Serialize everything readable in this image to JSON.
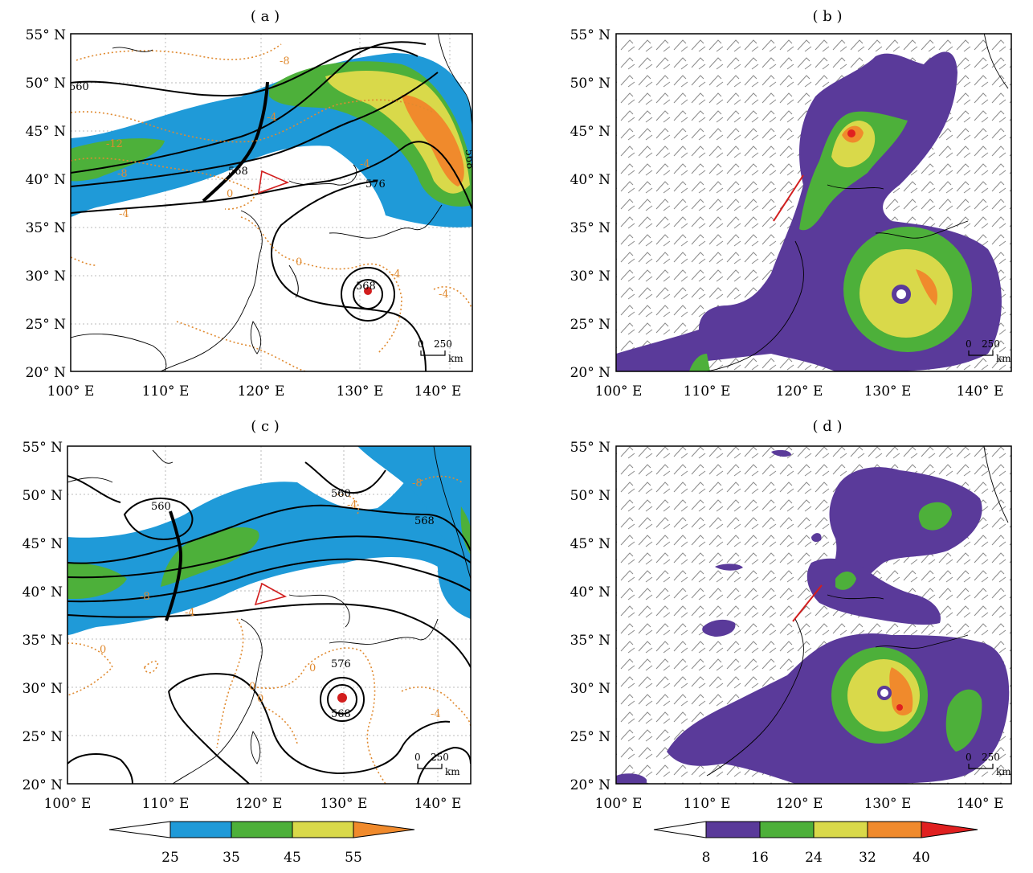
{
  "panels": [
    {
      "id": "a",
      "title": "( a )",
      "contours": [
        "560",
        "568",
        "576",
        "568",
        "568"
      ],
      "temps": [
        "-8",
        "-4",
        "-12",
        "-8",
        "0",
        "-4",
        "-4",
        "0",
        "-4",
        "-4"
      ],
      "scale": {
        "zero": "0",
        "length": "250",
        "unit": "km"
      }
    },
    {
      "id": "b",
      "title": "( b )",
      "scale": {
        "zero": "0",
        "length": "250",
        "unit": "km"
      }
    },
    {
      "id": "c",
      "title": "( c )",
      "contours": [
        "560",
        "560",
        "568",
        "576",
        "568"
      ],
      "temps": [
        "-8",
        "-4",
        "-8",
        "-4",
        "0",
        "0",
        "0",
        "0",
        "-4"
      ],
      "scale": {
        "zero": "0",
        "length": "250",
        "unit": "km"
      }
    },
    {
      "id": "d",
      "title": "( d )",
      "scale": {
        "zero": "0",
        "length": "250",
        "unit": "km"
      }
    }
  ],
  "axes": {
    "lat_labels": [
      "55° N",
      "50° N",
      "45° N",
      "40° N",
      "35° N",
      "30° N",
      "25° N",
      "20° N"
    ],
    "lon_labels": [
      "100° E",
      "110° E",
      "120° E",
      "130° E",
      "140° E"
    ]
  },
  "colorbar_left": {
    "ticks": [
      "25",
      "35",
      "45",
      "55"
    ],
    "colors": [
      "#ffffff",
      "#1f9ad8",
      "#4db03a",
      "#d9d94a",
      "#f08a2c"
    ]
  },
  "colorbar_right": {
    "ticks": [
      "8",
      "16",
      "24",
      "32",
      "40"
    ],
    "colors": [
      "#ffffff",
      "#5a3a9a",
      "#4db03a",
      "#d9d94a",
      "#f08a2c",
      "#e02020"
    ]
  },
  "colors": {
    "jet_blue": "#1f9ad8",
    "green": "#4db03a",
    "yellow": "#d9d94a",
    "orange": "#f08a2c",
    "red": "#e02020",
    "purple": "#5a3a9a",
    "temp_line": "#e08a30"
  }
}
